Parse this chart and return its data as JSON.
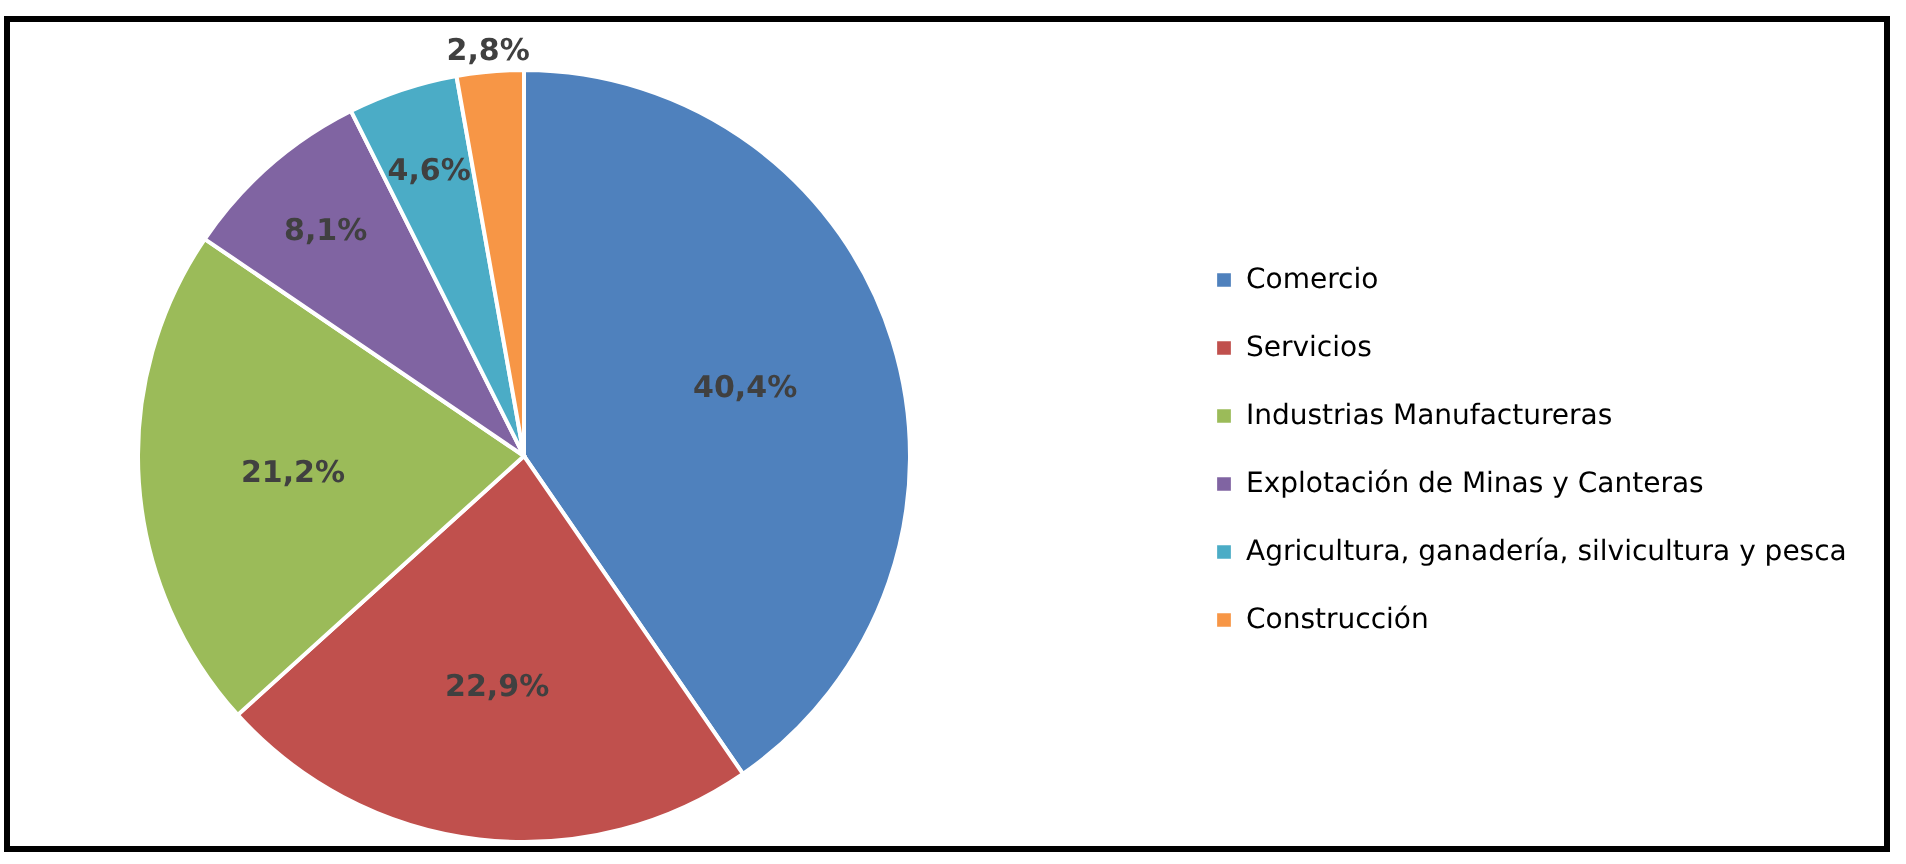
{
  "chart_data": {
    "type": "pie",
    "categories": [
      "Comercio",
      "Servicios",
      "Industrias Manufactureras",
      "Explotación de Minas y Canteras",
      "Agricultura, ganadería, silvicultura y pesca",
      "Construcción"
    ],
    "values": [
      40.4,
      22.9,
      21.2,
      8.1,
      4.6,
      2.8
    ],
    "colors": [
      "#4f81bd",
      "#c0504d",
      "#9bbb59",
      "#8064a2",
      "#4bacc6",
      "#f79646"
    ],
    "value_labels": [
      "40,4%",
      "22,9%",
      "21,2%",
      "8,1%",
      "4,6%",
      "2,8%"
    ],
    "legend": "right"
  }
}
